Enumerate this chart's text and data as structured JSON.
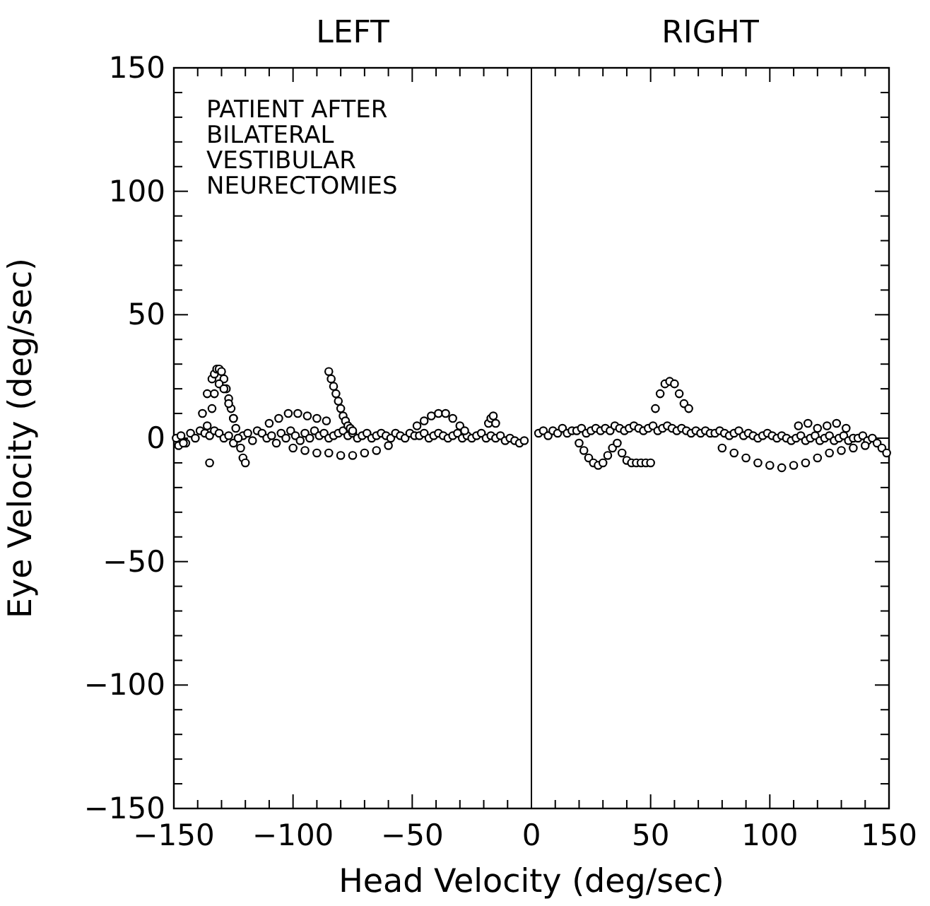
{
  "chart_data": {
    "type": "scatter",
    "xlabel": "Head Velocity (deg/sec)",
    "ylabel": "Eye Velocity (deg/sec)",
    "annotations": [
      "LEFT",
      "RIGHT",
      "PATIENT AFTER\nBILATERAL\nVESTIBULAR\nNEURECTOMIES"
    ],
    "xlim": [
      -150,
      150
    ],
    "ylim": [
      -150,
      150
    ],
    "xticks": [
      -150,
      {
        "value": -140,
        "label": null
      },
      {
        "value": -130,
        "label": null
      },
      {
        "value": -120,
        "label": null
      },
      {
        "value": -110,
        "label": null
      },
      -100,
      {
        "value": -90,
        "label": null
      },
      {
        "value": -80,
        "label": null
      },
      {
        "value": -70,
        "label": null
      },
      {
        "value": -60,
        "label": null
      },
      -50,
      {
        "value": -40,
        "label": null
      },
      {
        "value": -30,
        "label": null
      },
      {
        "value": -20,
        "label": null
      },
      {
        "value": -10,
        "label": null
      },
      0,
      {
        "value": 10,
        "label": null
      },
      {
        "value": 20,
        "label": null
      },
      {
        "value": 30,
        "label": null
      },
      {
        "value": 40,
        "label": null
      },
      50,
      {
        "value": 60,
        "label": null
      },
      {
        "value": 70,
        "label": null
      },
      {
        "value": 80,
        "label": null
      },
      {
        "value": 90,
        "label": null
      },
      100,
      {
        "value": 110,
        "label": null
      },
      {
        "value": 120,
        "label": null
      },
      {
        "value": 130,
        "label": null
      },
      {
        "value": 140,
        "label": null
      },
      150
    ],
    "yticks": [
      -150,
      {
        "value": -140,
        "label": null
      },
      {
        "value": -130,
        "label": null
      },
      {
        "value": -120,
        "label": null
      },
      {
        "value": -110,
        "label": null
      },
      -100,
      {
        "value": -90,
        "label": null
      },
      {
        "value": -80,
        "label": null
      },
      {
        "value": -70,
        "label": null
      },
      {
        "value": -60,
        "label": null
      },
      -50,
      {
        "value": -40,
        "label": null
      },
      {
        "value": -30,
        "label": null
      },
      {
        "value": -20,
        "label": null
      },
      {
        "value": -10,
        "label": null
      },
      0,
      {
        "value": 10,
        "label": null
      },
      {
        "value": 20,
        "label": null
      },
      {
        "value": 30,
        "label": null
      },
      {
        "value": 40,
        "label": null
      },
      50,
      {
        "value": 60,
        "label": null
      },
      {
        "value": 70,
        "label": null
      },
      {
        "value": 80,
        "label": null
      },
      {
        "value": 90,
        "label": null
      },
      100,
      {
        "value": 110,
        "label": null
      },
      {
        "value": 120,
        "label": null
      },
      {
        "value": 130,
        "label": null
      },
      {
        "value": 140,
        "label": null
      },
      150
    ],
    "ref_lines": [
      {
        "axis": "x",
        "value": 0,
        "color": "#000000"
      }
    ],
    "marker": "circle",
    "grid": false,
    "series": [
      {
        "color": "#000000",
        "x": [
          -149,
          -147,
          -145,
          -143,
          -141,
          -139,
          -137,
          -135,
          -133,
          -131,
          -129,
          -127,
          -125,
          -123,
          -121,
          -119,
          -117,
          -115,
          -113,
          -111,
          -109,
          -107,
          -105,
          -103,
          -101,
          -99,
          -97,
          -95,
          -93,
          -91,
          -89,
          -87,
          -85,
          -83,
          -81,
          -79,
          -77,
          -75,
          -73,
          -71,
          -69,
          -67,
          -65,
          -63,
          -61,
          -59,
          -57,
          -55,
          -53,
          -51,
          -49,
          -47,
          -45,
          -43,
          -41,
          -39,
          -37,
          -35,
          -33,
          -31,
          -29,
          -27,
          -25,
          -23,
          -21,
          -19,
          -17,
          -15,
          -13,
          -11,
          -9,
          -7,
          -5,
          -3,
          -138,
          -136,
          -134,
          -133,
          -132,
          -131,
          -130,
          -129,
          -128,
          -127,
          -126,
          -125,
          -124,
          -123,
          -122,
          -121,
          -120,
          -136,
          -134,
          -133,
          -131,
          -129,
          -127,
          -125,
          -85,
          -84,
          -83,
          -82,
          -81,
          -80,
          -79,
          -78,
          -77,
          -76,
          -75,
          -110,
          -106,
          -102,
          -98,
          -94,
          -90,
          -86,
          -48,
          -45,
          -42,
          -39,
          -36,
          -33,
          -30,
          -28,
          -100,
          -95,
          -90,
          -85,
          -80,
          -75,
          -70,
          -65,
          -60,
          -18,
          -17,
          -16,
          -15,
          -148,
          -146,
          -135
        ],
        "values": [
          0,
          1,
          -2,
          2,
          0,
          3,
          2,
          1,
          3,
          2,
          0,
          1,
          -2,
          0,
          1,
          2,
          -1,
          3,
          2,
          0,
          1,
          -2,
          2,
          0,
          3,
          1,
          -1,
          2,
          0,
          3,
          1,
          2,
          0,
          1,
          2,
          3,
          1,
          2,
          0,
          1,
          2,
          0,
          1,
          2,
          1,
          0,
          2,
          1,
          0,
          2,
          1,
          1,
          2,
          0,
          1,
          2,
          1,
          0,
          1,
          2,
          0,
          1,
          0,
          1,
          2,
          0,
          1,
          0,
          1,
          -1,
          0,
          -1,
          -2,
          -1,
          10,
          18,
          24,
          26,
          28,
          28,
          27,
          24,
          20,
          16,
          12,
          8,
          4,
          0,
          -4,
          -8,
          -10,
          5,
          12,
          18,
          22,
          20,
          14,
          8,
          27,
          24,
          21,
          18,
          15,
          12,
          9,
          7,
          5,
          4,
          3,
          6,
          8,
          10,
          10,
          9,
          8,
          7,
          5,
          7,
          9,
          10,
          10,
          8,
          5,
          3,
          -4,
          -5,
          -6,
          -6,
          -7,
          -7,
          -6,
          -5,
          -3,
          6,
          8,
          9,
          6,
          -3,
          -2,
          -10
        ]
      },
      {
        "color": "#000000",
        "x": [
          3,
          5,
          7,
          9,
          11,
          13,
          15,
          17,
          19,
          21,
          23,
          25,
          27,
          29,
          31,
          33,
          35,
          37,
          39,
          41,
          43,
          45,
          47,
          49,
          51,
          53,
          55,
          57,
          59,
          61,
          63,
          65,
          67,
          69,
          71,
          73,
          75,
          77,
          79,
          81,
          83,
          85,
          87,
          89,
          91,
          93,
          95,
          97,
          99,
          101,
          103,
          105,
          107,
          109,
          111,
          113,
          115,
          117,
          119,
          121,
          123,
          125,
          127,
          129,
          131,
          133,
          135,
          137,
          139,
          141,
          143,
          145,
          147,
          149,
          52,
          54,
          56,
          58,
          60,
          62,
          64,
          66,
          20,
          22,
          24,
          26,
          28,
          30,
          32,
          34,
          36,
          38,
          40,
          42,
          44,
          46,
          48,
          50,
          80,
          85,
          90,
          95,
          100,
          105,
          110,
          115,
          120,
          125,
          130,
          135,
          140,
          112,
          116,
          120,
          124,
          128,
          132
        ],
        "values": [
          2,
          3,
          1,
          3,
          2,
          4,
          2,
          3,
          3,
          4,
          2,
          3,
          4,
          3,
          4,
          3,
          5,
          4,
          3,
          4,
          5,
          4,
          3,
          4,
          5,
          3,
          4,
          5,
          4,
          3,
          4,
          3,
          2,
          3,
          2,
          3,
          2,
          2,
          3,
          2,
          1,
          2,
          3,
          1,
          2,
          1,
          0,
          1,
          2,
          1,
          0,
          1,
          0,
          -1,
          0,
          1,
          -1,
          0,
          1,
          -1,
          0,
          1,
          -1,
          0,
          1,
          -1,
          0,
          0,
          1,
          -1,
          0,
          -2,
          -4,
          -6,
          12,
          18,
          22,
          23,
          22,
          18,
          14,
          12,
          -2,
          -5,
          -8,
          -10,
          -11,
          -10,
          -7,
          -4,
          -2,
          -6,
          -9,
          -10,
          -10,
          -10,
          -10,
          -10,
          -4,
          -6,
          -8,
          -10,
          -11,
          -12,
          -11,
          -10,
          -8,
          -6,
          -5,
          -4,
          -3,
          5,
          6,
          4,
          5,
          6,
          4
        ]
      }
    ]
  }
}
